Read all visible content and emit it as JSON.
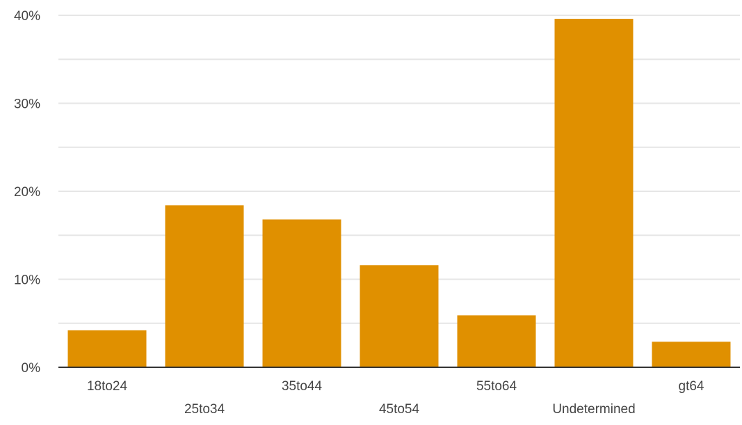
{
  "chart_data": {
    "type": "bar",
    "categories": [
      "18to24",
      "25to34",
      "35to44",
      "45to54",
      "55to64",
      "Undetermined",
      "gt64"
    ],
    "values": [
      4.2,
      18.4,
      16.8,
      11.6,
      5.9,
      39.6,
      2.9
    ],
    "ylim": [
      0,
      40
    ],
    "yticks": [
      0,
      10,
      20,
      30,
      40
    ],
    "ytick_labels": [
      "0%",
      "10%",
      "20%",
      "30%",
      "40%"
    ],
    "minor_gridlines": [
      5,
      15,
      25,
      35
    ],
    "grid": true,
    "bar_color": "#e09000",
    "grid_color": "#e6e6e6",
    "axis_color": "#333333",
    "label_color": "#444444"
  }
}
